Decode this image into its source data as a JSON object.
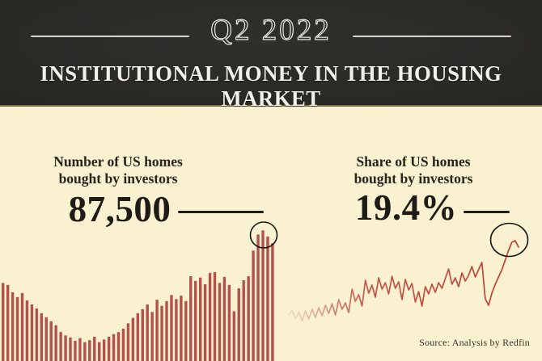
{
  "header": {
    "period": "Q2 2022",
    "title": "INSTITUTIONAL MONEY IN THE HOUSING MARKET"
  },
  "left_panel": {
    "label_lines": [
      "Number of US homes",
      "bought by investors"
    ],
    "value": "87,500"
  },
  "right_panel": {
    "label_lines": [
      "Share of US homes",
      "bought by investors"
    ],
    "value": "19.4%"
  },
  "source": "Source: Analysis by Redfin",
  "colors": {
    "header_bg": "#2b2a27",
    "body_bg": "#f9f1cf",
    "bar": "#b3524c",
    "line": "#bf4138",
    "line_fade_start": "#eadfbe",
    "dark_text": "#1f1b16",
    "circle_stroke": "#181512",
    "rule": "#d9d6d0",
    "header_divider": "#7a6c3f"
  },
  "chart_data": [
    {
      "type": "bar",
      "title": "Number of US homes bought by investors",
      "unit": "homes bought per quarter",
      "xlabel": "",
      "ylabel": "",
      "axes_shown": false,
      "grid": false,
      "legend": "none",
      "highlight": "circle around final bars; last value labeled 87,500",
      "final_value": 87500,
      "values_estimated": [
        58000,
        56500,
        51000,
        47500,
        50500,
        45000,
        42000,
        39000,
        35500,
        32500,
        29500,
        26500,
        21500,
        19000,
        17500,
        15000,
        17000,
        14000,
        15500,
        18000,
        14000,
        16000,
        18000,
        20000,
        21500,
        24000,
        28000,
        32000,
        35500,
        38500,
        42000,
        36500,
        45500,
        41000,
        44500,
        49000,
        46000,
        48500,
        44500,
        63000,
        59500,
        62000,
        57000,
        65500,
        66000,
        58000,
        62500,
        56500,
        37000,
        54000,
        60000,
        63000,
        82000,
        94000,
        97000,
        92500,
        87500
      ]
    },
    {
      "type": "line",
      "title": "Share of US homes bought by investors",
      "unit": "percent",
      "xlabel": "",
      "ylabel": "",
      "axes_shown": false,
      "grid": false,
      "legend": "none",
      "highlight": "circle around final peak; last value labeled 19.4%",
      "final_value_pct": 19.4,
      "values_estimated_pct": [
        11.0,
        11.6,
        10.6,
        11.3,
        10.3,
        11.5,
        10.5,
        11.7,
        10.7,
        11.9,
        10.9,
        12.2,
        11.2,
        12.4,
        11.0,
        12.9,
        11.7,
        12.5,
        11.3,
        14.2,
        12.7,
        13.5,
        12.1,
        15.3,
        13.7,
        14.7,
        13.2,
        15.6,
        14.2,
        15.0,
        13.6,
        15.8,
        14.3,
        15.1,
        12.9,
        15.4,
        14.1,
        14.9,
        12.6,
        13.9,
        12.1,
        14.5,
        13.6,
        14.8,
        13.8,
        15.0,
        14.3,
        15.5,
        16.7,
        14.8,
        15.6,
        14.5,
        16.2,
        15.2,
        15.9,
        17.0,
        15.7,
        16.6,
        17.5,
        13.0,
        12.2,
        13.7,
        14.8,
        15.7,
        16.6,
        17.8,
        19.0,
        20.0,
        20.2,
        19.4
      ]
    }
  ]
}
